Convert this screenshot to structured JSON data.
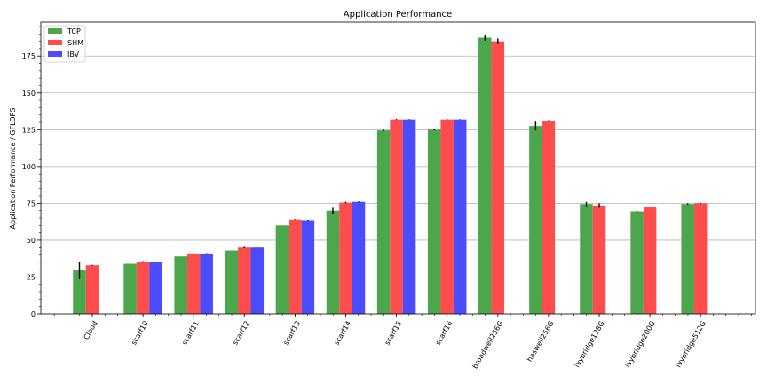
{
  "chart_data": {
    "type": "bar",
    "title": "Application Performance",
    "xlabel": "",
    "ylabel": "Application Performance / GFLOPS",
    "ylim": [
      0,
      198
    ],
    "yticks": [
      0,
      25,
      50,
      75,
      100,
      125,
      150,
      175
    ],
    "grid": "horizontal",
    "legend_placement": "top-left",
    "categories": [
      "Cloud",
      "scarf10",
      "scarf11",
      "scarf12",
      "scarf13",
      "scarf14",
      "scarf15",
      "scarf16",
      "broadwell256G",
      "haswell256G",
      "ivybridge128G",
      "ivybridge200G",
      "ivybridge512G"
    ],
    "series": [
      {
        "name": "TCP",
        "color": "#4ca64c",
        "values": [
          29.5,
          34,
          39,
          43,
          60,
          70,
          124.5,
          125,
          187.5,
          127.5,
          74.5,
          69.5,
          74.5
        ],
        "errors": [
          6,
          0,
          0,
          0,
          0,
          2,
          0.5,
          0.5,
          2,
          3,
          1.5,
          0.5,
          0.5
        ]
      },
      {
        "name": "SHM",
        "color": "#ff4c4c",
        "values": [
          33,
          35.5,
          41,
          45,
          64,
          75.5,
          132,
          132,
          185,
          131,
          73.5,
          72.5,
          75
        ],
        "errors": [
          0.3,
          0.3,
          0.2,
          0.5,
          0.2,
          0.5,
          0.3,
          0.3,
          2,
          0.5,
          1.5,
          0.3,
          0.3
        ]
      },
      {
        "name": "IBV",
        "color": "#4c4cff",
        "values": [
          null,
          35,
          41,
          45,
          63.5,
          76,
          132,
          132,
          null,
          null,
          null,
          null,
          null
        ],
        "errors": [
          0,
          0.3,
          0.2,
          0.2,
          0.3,
          0.3,
          0.2,
          0.2,
          0,
          0,
          0,
          0,
          0
        ]
      }
    ]
  }
}
